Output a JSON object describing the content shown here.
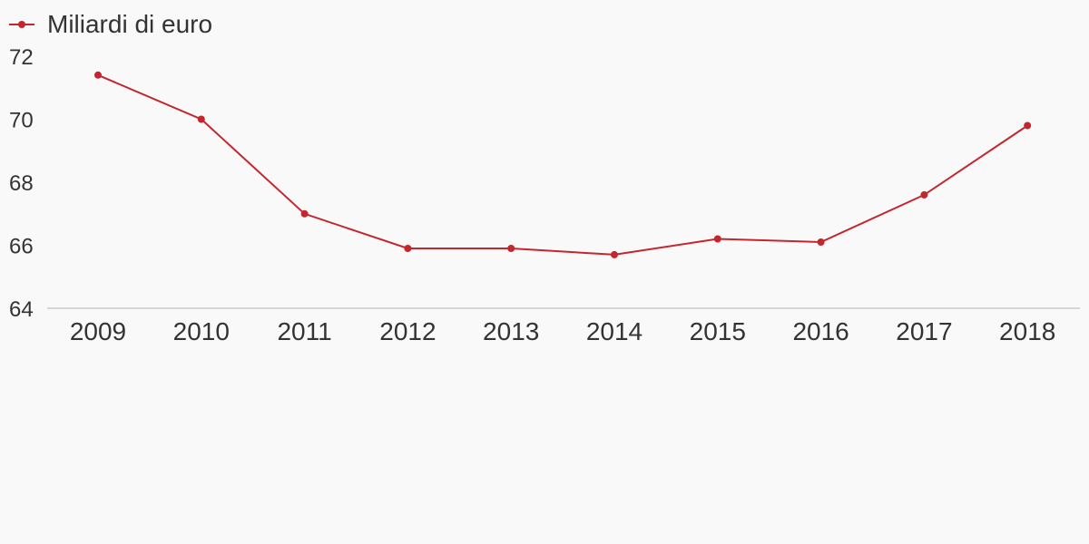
{
  "chart_data": {
    "type": "line",
    "x": [
      "2009",
      "2010",
      "2011",
      "2012",
      "2013",
      "2014",
      "2015",
      "2016",
      "2017",
      "2018"
    ],
    "series": [
      {
        "name": "Miliardi di euro",
        "values": [
          71.4,
          70.0,
          67.0,
          65.9,
          65.9,
          65.7,
          66.2,
          66.1,
          67.6,
          69.8
        ],
        "color": "#c4262e"
      }
    ],
    "yticks": [
      "64",
      "66",
      "68",
      "70",
      "72"
    ],
    "ylim": [
      64,
      72
    ],
    "grid": false,
    "legend": "top-left"
  }
}
